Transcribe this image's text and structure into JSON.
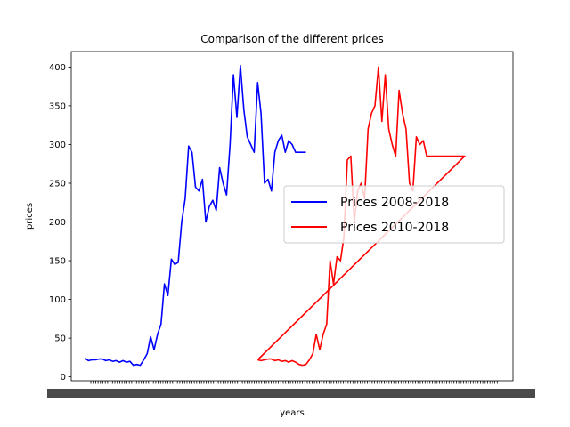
{
  "chart_data": {
    "type": "line",
    "title": "Comparison of the different prices",
    "xlabel": "years",
    "ylabel": "prices",
    "ylim": [
      -5,
      420
    ],
    "yticks": [
      0,
      50,
      100,
      150,
      200,
      250,
      300,
      350,
      400
    ],
    "xrange": [
      -20,
      620
    ],
    "xtick_labels_readable": false,
    "grid": false,
    "legend_placement": "center-right",
    "series": [
      {
        "name": "Prices 2008-2018",
        "color": "#0000ff",
        "x": [
          0,
          5,
          10,
          15,
          20,
          25,
          30,
          35,
          40,
          45,
          50,
          55,
          60,
          65,
          70,
          75,
          80,
          85,
          90,
          95,
          100,
          105,
          110,
          115,
          120,
          125,
          130,
          135,
          140,
          145,
          150,
          155,
          160,
          165,
          170,
          175,
          180,
          185,
          190,
          195,
          200,
          205,
          210,
          215,
          220,
          225,
          230,
          235,
          240,
          245,
          250,
          255,
          260,
          265,
          270,
          275,
          280,
          285,
          290,
          295,
          300,
          305,
          310,
          315,
          320
        ],
        "values": [
          24,
          21,
          22,
          22,
          23,
          23,
          21,
          22,
          20,
          21,
          19,
          21,
          19,
          20,
          15,
          16,
          15,
          22,
          30,
          52,
          35,
          55,
          68,
          120,
          105,
          152,
          145,
          148,
          200,
          230,
          298,
          290,
          245,
          240,
          255,
          200,
          220,
          228,
          215,
          270,
          250,
          235,
          300,
          390,
          335,
          402,
          345,
          310,
          300,
          290,
          380,
          340,
          250,
          255,
          240,
          290,
          305,
          312,
          290,
          305,
          300,
          290,
          290,
          290,
          290
        ]
      },
      {
        "name": "Prices 2010-2018",
        "color": "#ff0000",
        "x": [
          250,
          255,
          260,
          265,
          270,
          275,
          280,
          285,
          290,
          295,
          300,
          305,
          310,
          315,
          320,
          325,
          330,
          335,
          340,
          345,
          350,
          355,
          360,
          365,
          370,
          375,
          380,
          385,
          390,
          395,
          400,
          405,
          410,
          415,
          420,
          425,
          430,
          435,
          440,
          445,
          450,
          455,
          460,
          465,
          470,
          475,
          480,
          485,
          490,
          495,
          500,
          505,
          510,
          515,
          520,
          525,
          530,
          535,
          540,
          545,
          550,
          250
        ],
        "values": [
          22,
          21,
          22,
          23,
          23,
          21,
          22,
          20,
          21,
          19,
          21,
          19,
          16,
          15,
          16,
          22,
          30,
          55,
          35,
          55,
          68,
          150,
          120,
          155,
          150,
          180,
          280,
          285,
          200,
          240,
          250,
          230,
          320,
          340,
          350,
          400,
          330,
          390,
          320,
          300,
          285,
          370,
          340,
          320,
          250,
          240,
          310,
          300,
          305,
          285,
          285,
          285,
          285,
          285,
          285,
          285,
          285,
          285,
          285,
          285,
          285,
          22
        ]
      }
    ]
  }
}
